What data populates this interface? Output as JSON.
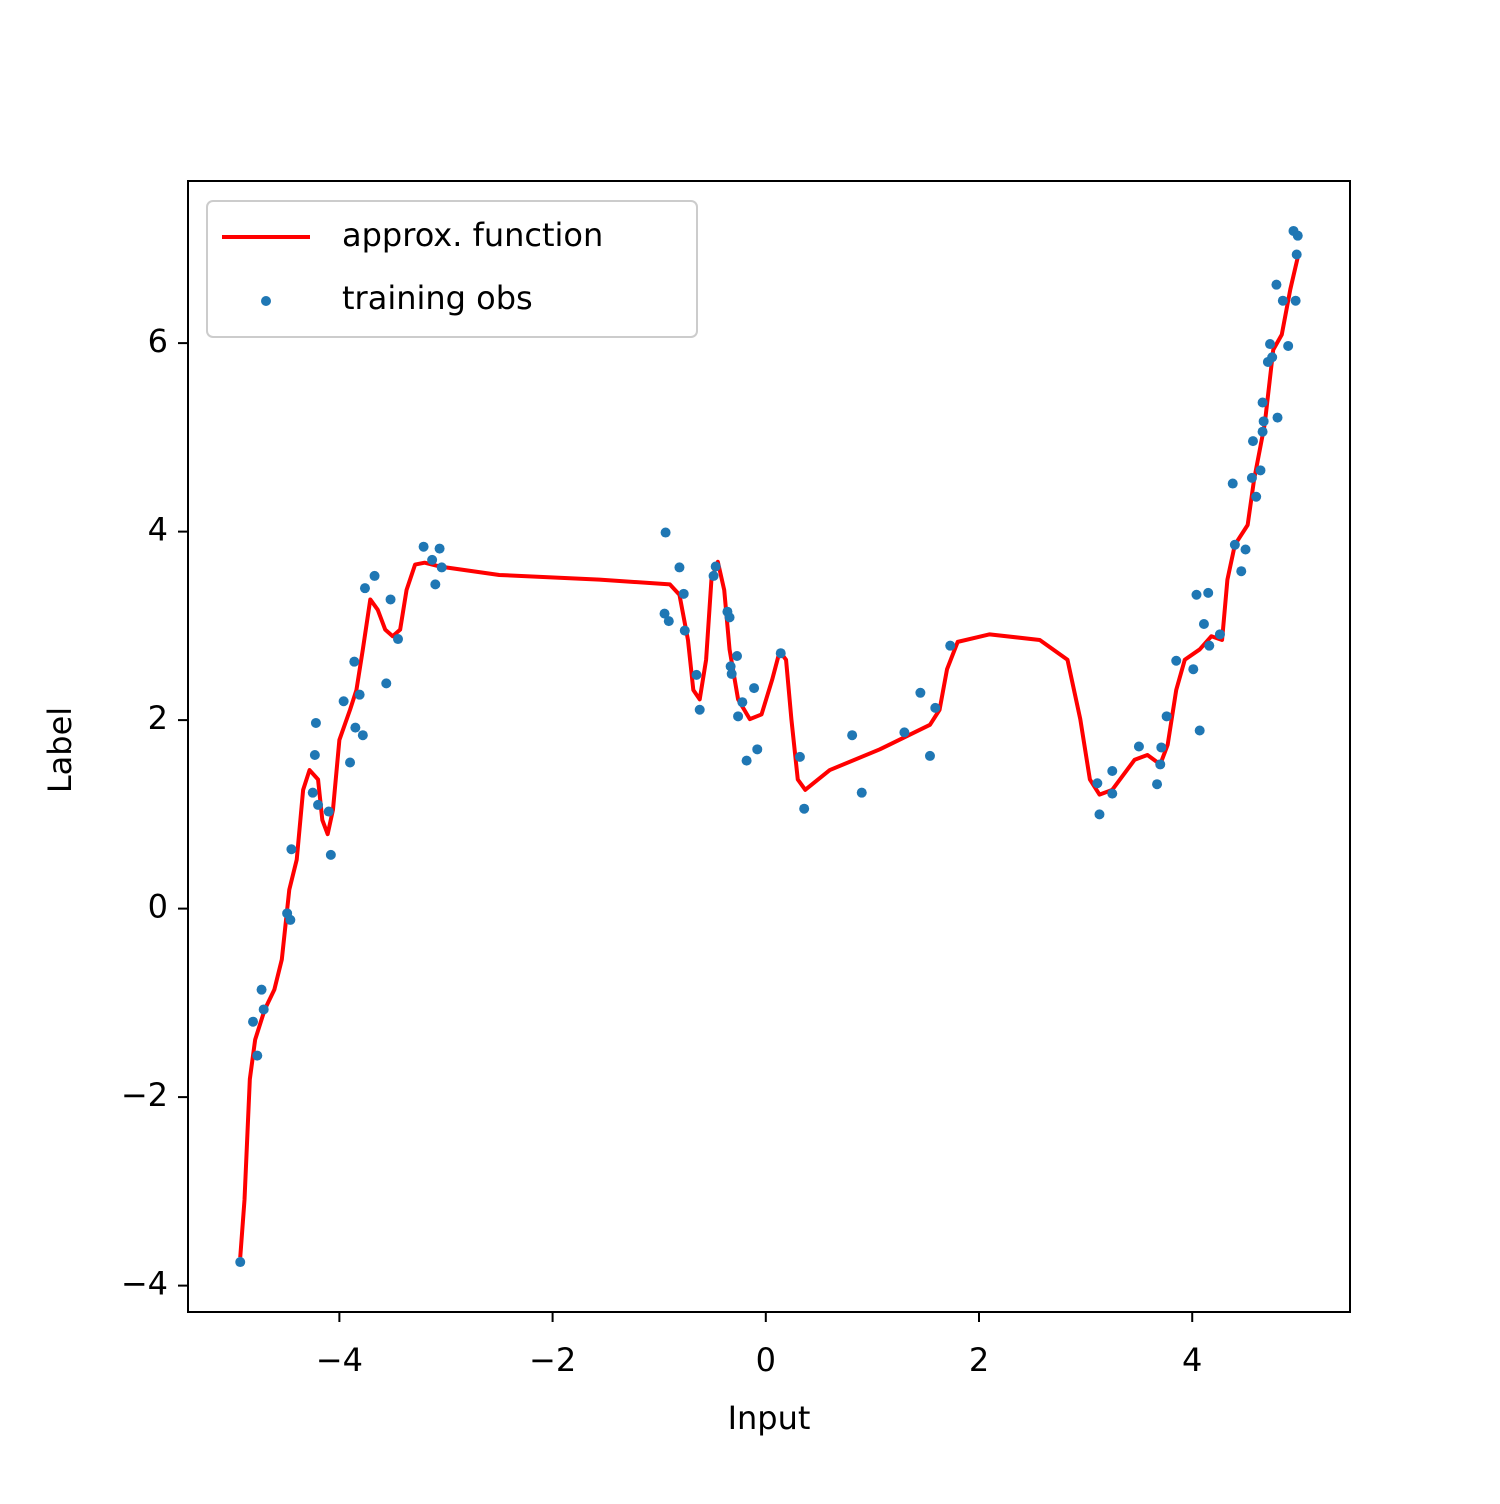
{
  "chart_data": {
    "type": "line",
    "x_label": "Input",
    "y_label": "Label",
    "xlim": [
      -5.42,
      5.48
    ],
    "ylim": [
      -4.28,
      7.72
    ],
    "xticks": [
      {
        "value": -4,
        "label": "−4"
      },
      {
        "value": -2,
        "label": "−2"
      },
      0,
      2,
      4
    ],
    "yticks": [
      {
        "value": -4,
        "label": "−4"
      },
      {
        "value": -2,
        "label": "−2"
      },
      0,
      2,
      4,
      6
    ],
    "legend": "upper-left",
    "series": [
      {
        "name": "approx. function",
        "type": "line",
        "color": "#ff0000",
        "x": [
          -4.93,
          -4.89,
          -4.84,
          -4.79,
          -4.7,
          -4.61,
          -4.54,
          -4.47,
          -4.4,
          -4.34,
          -4.28,
          -4.2,
          -4.16,
          -4.11,
          -4.06,
          -4.0,
          -3.9,
          -3.84,
          -3.78,
          -3.71,
          -3.64,
          -3.57,
          -3.5,
          -3.43,
          -3.37,
          -3.29,
          -3.2,
          -3.06,
          -2.5,
          -1.56,
          -0.9,
          -0.81,
          -0.73,
          -0.68,
          -0.62,
          -0.56,
          -0.51,
          -0.45,
          -0.39,
          -0.34,
          -0.26,
          -0.15,
          -0.04,
          0.06,
          0.13,
          0.19,
          0.24,
          0.3,
          0.37,
          0.6,
          1.07,
          1.54,
          1.63,
          1.7,
          1.8,
          2.1,
          2.57,
          2.83,
          2.95,
          3.04,
          3.13,
          3.25,
          3.46,
          3.58,
          3.7,
          3.77,
          3.85,
          3.93,
          4.07,
          4.18,
          4.28,
          4.33,
          4.4,
          4.52,
          4.58,
          4.68,
          4.76,
          4.84,
          4.92,
          4.99
        ],
        "values": [
          -3.7,
          -3.09,
          -1.81,
          -1.39,
          -1.07,
          -0.86,
          -0.54,
          0.2,
          0.52,
          1.26,
          1.47,
          1.37,
          0.94,
          0.79,
          1.05,
          1.79,
          2.11,
          2.32,
          2.75,
          3.28,
          3.17,
          2.96,
          2.89,
          2.96,
          3.38,
          3.65,
          3.67,
          3.63,
          3.54,
          3.49,
          3.44,
          3.33,
          2.85,
          2.32,
          2.22,
          2.64,
          3.49,
          3.68,
          3.38,
          2.75,
          2.22,
          2.01,
          2.06,
          2.43,
          2.73,
          2.64,
          2.01,
          1.37,
          1.26,
          1.47,
          1.69,
          1.95,
          2.11,
          2.54,
          2.83,
          2.91,
          2.85,
          2.64,
          2.01,
          1.37,
          1.21,
          1.26,
          1.58,
          1.63,
          1.53,
          1.74,
          2.32,
          2.64,
          2.75,
          2.89,
          2.85,
          3.49,
          3.86,
          4.07,
          4.55,
          5.14,
          5.93,
          6.09,
          6.57,
          6.91
        ]
      },
      {
        "name": "training obs",
        "type": "scatter",
        "color": "#1f77b4",
        "x": [
          -4.93,
          -4.81,
          -4.77,
          -4.73,
          -4.71,
          -4.49,
          -4.46,
          -4.45,
          -4.25,
          -4.23,
          -4.22,
          -4.2,
          -4.1,
          -4.08,
          -3.96,
          -3.9,
          -3.86,
          -3.85,
          -3.81,
          -3.78,
          -3.76,
          -3.67,
          -3.56,
          -3.52,
          -3.45,
          -3.21,
          -3.13,
          -3.1,
          -3.06,
          -3.04,
          -0.94,
          -0.95,
          -0.91,
          -0.81,
          -0.77,
          -0.76,
          -0.65,
          -0.62,
          -0.49,
          -0.47,
          -0.36,
          -0.34,
          -0.33,
          -0.32,
          -0.27,
          -0.26,
          -0.22,
          -0.18,
          -0.11,
          -0.08,
          0.14,
          0.32,
          0.36,
          0.81,
          0.9,
          1.3,
          1.45,
          1.54,
          1.59,
          1.73,
          3.11,
          3.13,
          3.25,
          3.25,
          3.5,
          3.67,
          3.7,
          3.71,
          3.76,
          3.85,
          4.01,
          4.04,
          4.07,
          4.11,
          4.15,
          4.16,
          4.26,
          4.38,
          4.4,
          4.46,
          4.5,
          4.56,
          4.57,
          4.6,
          4.64,
          4.66,
          4.66,
          4.67,
          4.71,
          4.73,
          4.75,
          4.79,
          4.8,
          4.85,
          4.9,
          4.95,
          4.97,
          4.99,
          4.98
        ],
        "values": [
          -3.75,
          -1.2,
          -1.56,
          -0.86,
          -1.07,
          -0.05,
          -0.12,
          0.63,
          1.23,
          1.63,
          1.97,
          1.1,
          1.03,
          0.57,
          2.2,
          1.55,
          2.62,
          1.92,
          2.27,
          1.84,
          3.4,
          3.53,
          2.39,
          3.28,
          2.86,
          3.84,
          3.7,
          3.44,
          3.82,
          3.62,
          3.99,
          3.13,
          3.05,
          3.62,
          3.34,
          2.95,
          2.48,
          2.11,
          3.53,
          3.63,
          3.15,
          3.09,
          2.57,
          2.49,
          2.68,
          2.04,
          2.19,
          1.57,
          2.34,
          1.69,
          2.71,
          1.61,
          1.06,
          1.84,
          1.23,
          1.87,
          2.29,
          1.62,
          2.13,
          2.79,
          1.33,
          1.0,
          1.46,
          1.22,
          1.72,
          1.32,
          1.53,
          1.71,
          2.04,
          2.63,
          2.54,
          3.33,
          1.89,
          3.02,
          3.35,
          2.79,
          2.91,
          4.51,
          3.86,
          3.58,
          3.81,
          4.57,
          4.96,
          4.37,
          4.65,
          5.06,
          5.37,
          5.17,
          5.8,
          5.99,
          5.85,
          6.62,
          5.21,
          6.45,
          5.97,
          7.19,
          6.45,
          7.14,
          6.94
        ]
      }
    ]
  }
}
